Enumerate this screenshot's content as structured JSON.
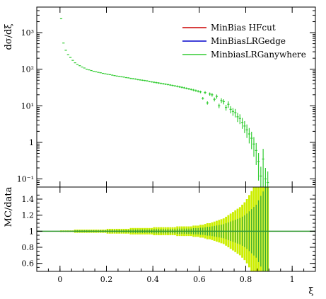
{
  "chart_data": [
    {
      "type": "scatter",
      "panel": "main",
      "ylabel": "dσ/dξ",
      "yscale": "log",
      "ylim": [
        0.06,
        5000
      ],
      "xlim": [
        -0.1,
        1.1
      ],
      "y_tick_labels": [
        "10⁻¹",
        "1",
        "10¹",
        "10²",
        "10³"
      ],
      "legend": {
        "placement": "top-right",
        "entries": [
          {
            "label": "MinBias HFcut",
            "color": "#cc0000"
          },
          {
            "label": "MinBiasLRGedge",
            "color": "#0000cc"
          },
          {
            "label": "MinbiasLRGanywhere",
            "color": "#33cc33"
          }
        ]
      },
      "series": [
        {
          "color": "#33cc33",
          "x": [
            0.005,
            0.015,
            0.025,
            0.035,
            0.045,
            0.055,
            0.065,
            0.075,
            0.085,
            0.095,
            0.105,
            0.115,
            0.125,
            0.135,
            0.145,
            0.155,
            0.165,
            0.175,
            0.185,
            0.195,
            0.205,
            0.215,
            0.225,
            0.235,
            0.245,
            0.255,
            0.265,
            0.275,
            0.285,
            0.295,
            0.305,
            0.315,
            0.325,
            0.335,
            0.345,
            0.355,
            0.365,
            0.375,
            0.385,
            0.395,
            0.405,
            0.415,
            0.425,
            0.435,
            0.445,
            0.455,
            0.465,
            0.475,
            0.485,
            0.495,
            0.505,
            0.515,
            0.525,
            0.535,
            0.545,
            0.555,
            0.565,
            0.575,
            0.585,
            0.595,
            0.605,
            0.615,
            0.625,
            0.635,
            0.645,
            0.655,
            0.665,
            0.675,
            0.685,
            0.695,
            0.705,
            0.715,
            0.725,
            0.735,
            0.745,
            0.755,
            0.765,
            0.775,
            0.785,
            0.795,
            0.805,
            0.815,
            0.825,
            0.835,
            0.845,
            0.855,
            0.865,
            0.875,
            0.885,
            0.895
          ],
          "y": [
            2400,
            520,
            330,
            250,
            210,
            175,
            150,
            135,
            125,
            115,
            108,
            100,
            96,
            92,
            88,
            85,
            82,
            80,
            77,
            75,
            73,
            71,
            69,
            67,
            65,
            64,
            62,
            61,
            59,
            58,
            56,
            55,
            54,
            52,
            51,
            50,
            49,
            48,
            46,
            45,
            44,
            43,
            42,
            41,
            40,
            39,
            38,
            37,
            36,
            35,
            34,
            33,
            32,
            31,
            30,
            29,
            28,
            27,
            26,
            25,
            24,
            16,
            23,
            12,
            21,
            20,
            15,
            18,
            10,
            14,
            13,
            9,
            11,
            8,
            7,
            6.5,
            5,
            4.5,
            3.5,
            2.8,
            2.2,
            1.7,
            1.3,
            0.9,
            0.6,
            0.3,
            0.12,
            0.35,
            0.1,
            0.08
          ],
          "yerr_rel": [
            0.01,
            0.01,
            0.01,
            0.01,
            0.01,
            0.01,
            0.02,
            0.02,
            0.02,
            0.02,
            0.02,
            0.02,
            0.02,
            0.02,
            0.02,
            0.02,
            0.02,
            0.02,
            0.02,
            0.02,
            0.03,
            0.03,
            0.03,
            0.03,
            0.03,
            0.03,
            0.03,
            0.03,
            0.03,
            0.03,
            0.04,
            0.04,
            0.04,
            0.04,
            0.04,
            0.04,
            0.04,
            0.04,
            0.04,
            0.04,
            0.05,
            0.05,
            0.05,
            0.05,
            0.05,
            0.05,
            0.05,
            0.05,
            0.05,
            0.05,
            0.06,
            0.06,
            0.06,
            0.06,
            0.06,
            0.06,
            0.06,
            0.07,
            0.07,
            0.07,
            0.08,
            0.08,
            0.09,
            0.1,
            0.1,
            0.11,
            0.12,
            0.13,
            0.14,
            0.15,
            0.16,
            0.18,
            0.2,
            0.22,
            0.24,
            0.26,
            0.28,
            0.3,
            0.33,
            0.36,
            0.4,
            0.45,
            0.5,
            0.55,
            0.6,
            0.7,
            0.8,
            0.9,
            1.0,
            1.0
          ]
        }
      ]
    },
    {
      "type": "bar",
      "panel": "ratio",
      "ylabel": "MC/data",
      "xlabel": "ξ",
      "ylim": [
        0.5,
        1.55
      ],
      "xlim": [
        -0.1,
        1.1
      ],
      "x_tick_labels": [
        "0",
        "0.2",
        "0.4",
        "0.6",
        "0.8",
        "1"
      ],
      "x_ticks": [
        0,
        0.2,
        0.4,
        0.6,
        0.8,
        1.0
      ],
      "y_tick_labels": [
        "0.6",
        "0.8",
        "1",
        "1.2",
        "1.4"
      ],
      "y_ticks": [
        0.6,
        0.8,
        1.0,
        1.2,
        1.4
      ],
      "band_colors": {
        "outer": "#ccee00",
        "inner": "#33aa33"
      },
      "reference_line": {
        "value": 1.0,
        "color": "#339933"
      }
    }
  ]
}
